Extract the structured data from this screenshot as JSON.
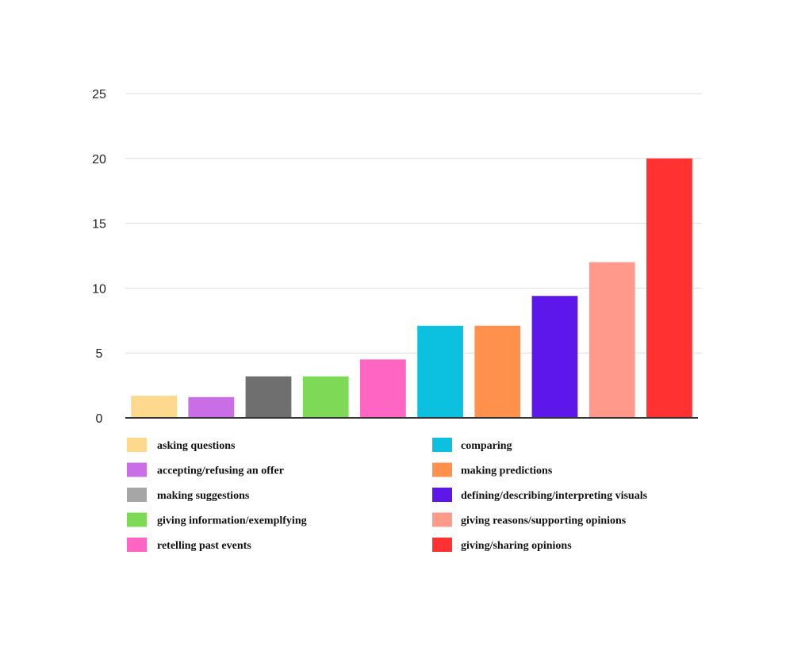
{
  "chart_data": {
    "type": "bar",
    "title": "",
    "xlabel": "",
    "ylabel": "",
    "ylim": [
      0,
      25
    ],
    "yticks": [
      0,
      5,
      10,
      15,
      20,
      25
    ],
    "grid": true,
    "legend_position": "bottom",
    "categories": [
      "asking questions",
      "accepting/refusing an offer",
      "making suggestions",
      "giving information/exemplfying",
      "retelling past events",
      "comparing",
      "making predictions",
      "defining/describing/interpreting visuals",
      "giving reasons/supporting opinions",
      "giving/sharing opinions"
    ],
    "values": [
      1.7,
      1.6,
      3.2,
      3.2,
      4.5,
      7.1,
      7.1,
      9.4,
      12,
      20
    ],
    "colors": [
      "#fcd98c",
      "#c96ee6",
      "#6f6f6f",
      "#7ed957",
      "#ff66c4",
      "#0cc0df",
      "#ff914d",
      "#5e17eb",
      "#ff9a8a",
      "#ff3131"
    ],
    "legend_swatch_colors": [
      "#fcd98c",
      "#c96ee6",
      "#a6a6a6",
      "#7ed957",
      "#ff66c4",
      "#0cc0df",
      "#ff914d",
      "#5e17eb",
      "#ff9a8a",
      "#ff3131"
    ]
  }
}
